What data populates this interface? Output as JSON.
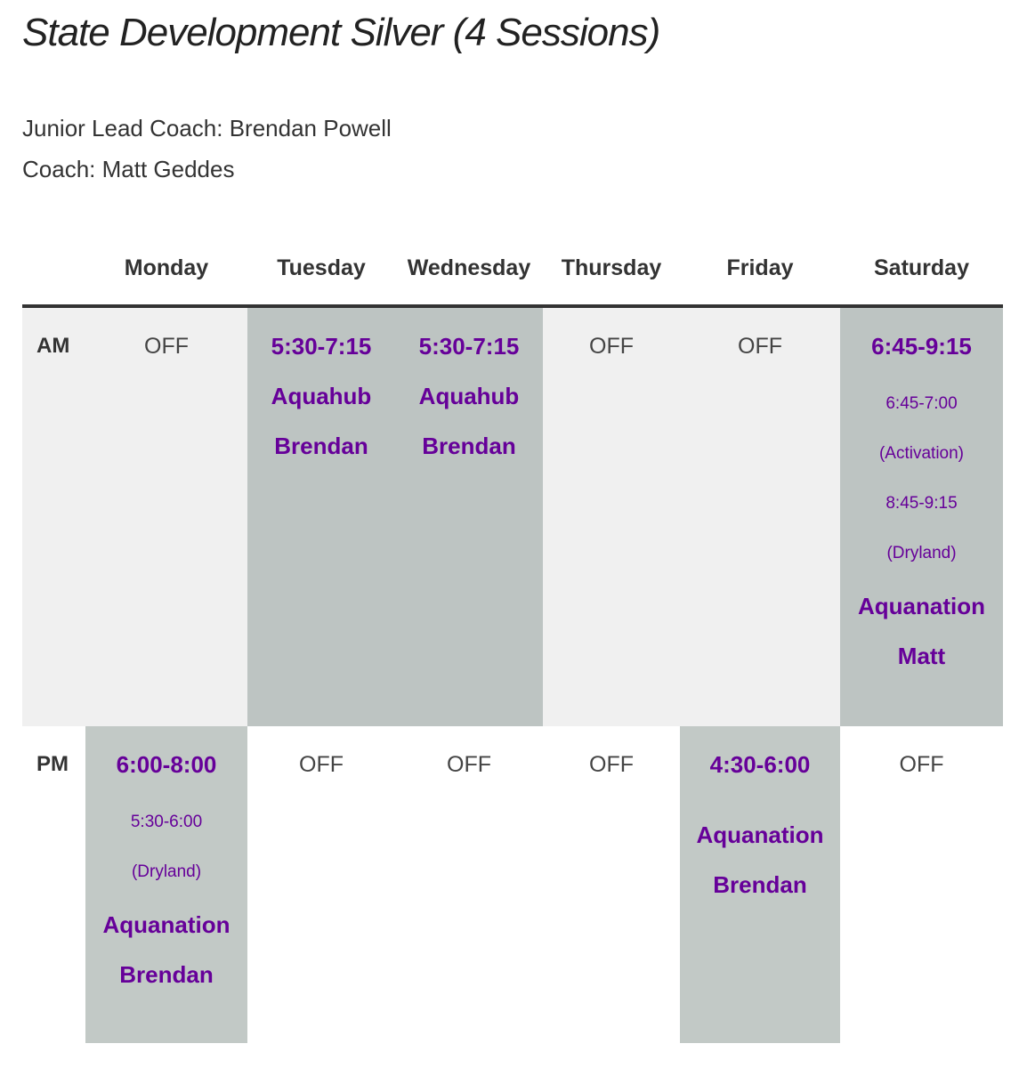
{
  "page": {
    "title": "State Development Silver (4 Sessions)",
    "lead_coach": "Junior Lead Coach: Brendan Powell",
    "coach": "Coach: Matt Geddes"
  },
  "schedule": {
    "days": [
      "Monday",
      "Tuesday",
      "Wednesday",
      "Thursday",
      "Friday",
      "Saturday"
    ],
    "am": {
      "label": "AM",
      "monday": {
        "text": "OFF"
      },
      "tuesday": {
        "time": "5:30-7:15",
        "venue": "Aquahub",
        "coach": "Brendan"
      },
      "wednesday": {
        "time": "5:30-7:15",
        "venue": "Aquahub",
        "coach": "Brendan"
      },
      "thursday": {
        "text": "OFF"
      },
      "friday": {
        "text": "OFF"
      },
      "saturday": {
        "time": "6:45-9:15",
        "detail1": "6:45-7:00",
        "detail2": "(Activation)",
        "detail3": "8:45-9:15",
        "detail4": "(Dryland)",
        "venue": "Aquanation",
        "coach": "Matt"
      }
    },
    "pm": {
      "label": "PM",
      "monday": {
        "time": "6:00-8:00",
        "detail1": "5:30-6:00",
        "detail2": "(Dryland)",
        "venue": "Aquanation",
        "coach": "Brendan"
      },
      "tuesday": {
        "text": "OFF"
      },
      "wednesday": {
        "text": "OFF"
      },
      "thursday": {
        "text": "OFF"
      },
      "friday": {
        "time": "4:30-6:00",
        "venue": "Aquanation",
        "coach": "Brendan"
      },
      "saturday": {
        "text": "OFF"
      }
    }
  },
  "colors": {
    "session_text": "#660099",
    "shaded_cell": "#bdc4c2",
    "am_row_bg": "#f0f0f0",
    "header_rule": "#333333"
  }
}
